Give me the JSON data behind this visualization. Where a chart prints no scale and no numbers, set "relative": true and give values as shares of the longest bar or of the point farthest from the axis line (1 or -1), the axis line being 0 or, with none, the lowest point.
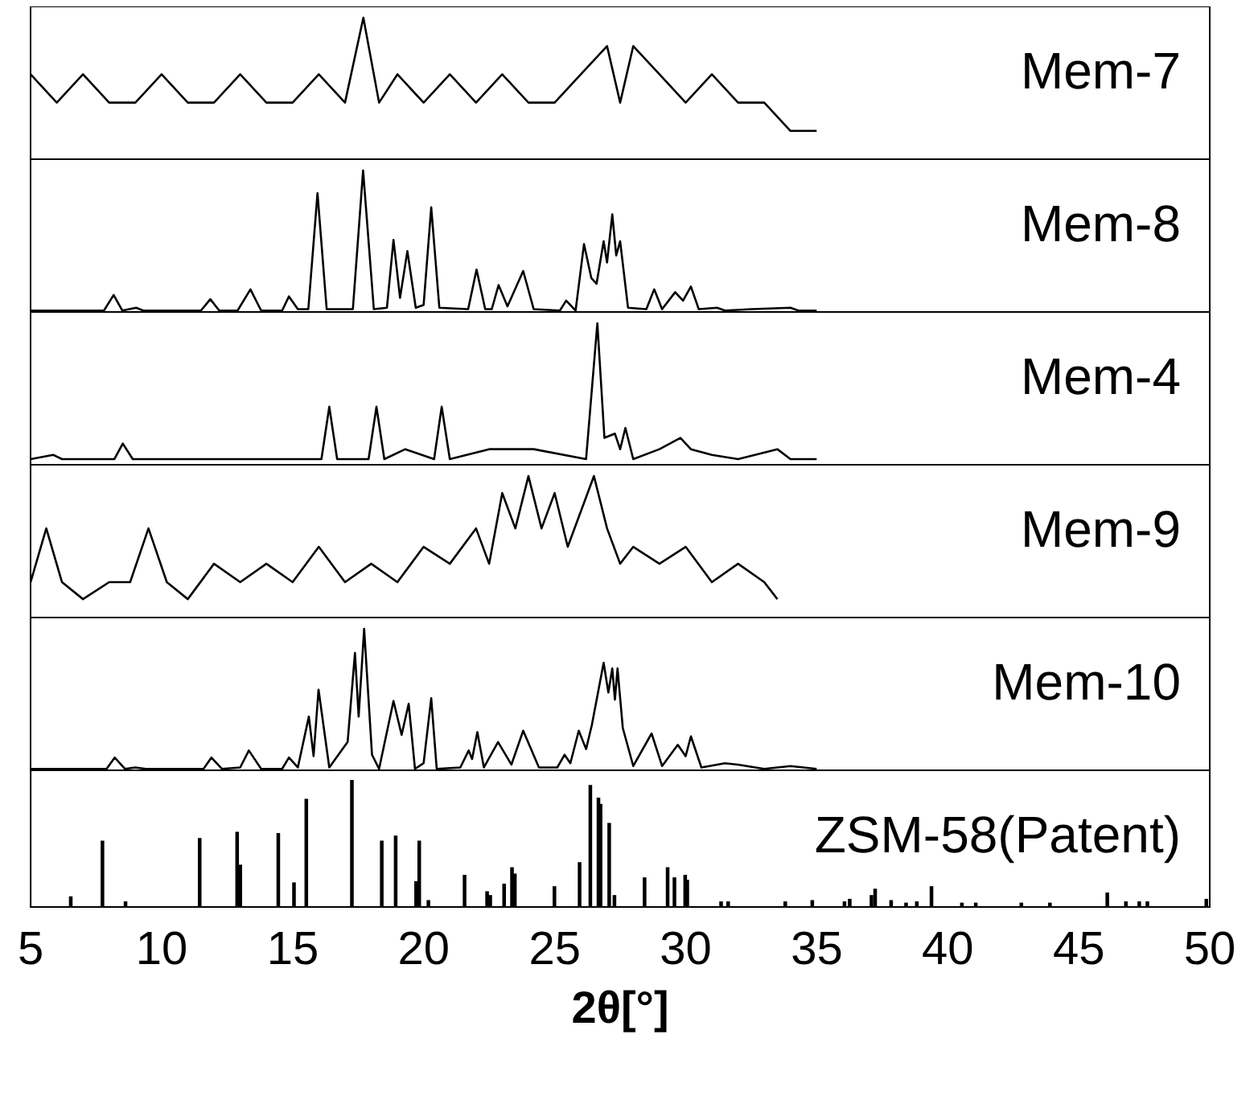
{
  "chart_data": [
    {
      "type": "line",
      "relative": true,
      "xlim": [
        5,
        50
      ],
      "tick_labels": false,
      "marker": "none",
      "series": [
        {
          "name": "Mem-7",
          "color": "#000000",
          "x": [
            5,
            6,
            7,
            8,
            9,
            10,
            11,
            12,
            13,
            14,
            15,
            16,
            17,
            17.7,
            18.3,
            19,
            20,
            21,
            22,
            23,
            24,
            25,
            26,
            27,
            27.5,
            28,
            29,
            30,
            31,
            32,
            33,
            34,
            35
          ],
          "values": [
            0.6,
            0.4,
            0.6,
            0.4,
            0.4,
            0.6,
            0.4,
            0.4,
            0.6,
            0.4,
            0.4,
            0.6,
            0.4,
            1,
            0.4,
            0.6,
            0.4,
            0.6,
            0.4,
            0.6,
            0.4,
            0.4,
            0.6,
            0.8,
            0.4,
            0.8,
            0.6,
            0.4,
            0.6,
            0.4,
            0.4,
            0.2,
            0.2
          ]
        }
      ]
    },
    {
      "type": "line",
      "relative": true,
      "xlim": [
        5,
        50
      ],
      "tick_labels": false,
      "marker": "none",
      "series": [
        {
          "name": "Mem-8",
          "color": "#000000",
          "x": [
            5.0,
            7.8,
            8.17,
            8.5,
            9.03,
            9.3,
            11.5,
            11.86,
            12.2,
            12.9,
            13.39,
            13.8,
            14.6,
            14.86,
            15.2,
            15.6,
            15.95,
            16.3,
            17.3,
            17.69,
            18.1,
            18.6,
            18.85,
            19.1,
            19.38,
            19.7,
            20.0,
            20.29,
            20.6,
            21.7,
            22.02,
            22.35,
            22.6,
            22.86,
            23.2,
            23.8,
            24.2,
            25.2,
            25.44,
            25.8,
            26.12,
            26.4,
            26.6,
            26.87,
            27.0,
            27.2,
            27.35,
            27.5,
            27.8,
            28.5,
            28.8,
            29.1,
            29.6,
            29.9,
            30.2,
            30.5,
            31.2,
            31.5,
            32.5,
            34.0,
            34.3,
            35.0
          ],
          "values": [
            0.01,
            0.01,
            0.12,
            0.01,
            0.03,
            0.01,
            0.01,
            0.09,
            0.01,
            0.01,
            0.16,
            0.01,
            0.01,
            0.11,
            0.02,
            0.02,
            0.84,
            0.02,
            0.02,
            1.0,
            0.02,
            0.03,
            0.51,
            0.1,
            0.43,
            0.03,
            0.05,
            0.74,
            0.03,
            0.02,
            0.3,
            0.02,
            0.02,
            0.19,
            0.04,
            0.29,
            0.02,
            0.01,
            0.08,
            0.01,
            0.48,
            0.24,
            0.2,
            0.5,
            0.35,
            0.69,
            0.4,
            0.5,
            0.03,
            0.02,
            0.16,
            0.02,
            0.14,
            0.08,
            0.18,
            0.02,
            0.03,
            0.01,
            0.02,
            0.03,
            0.01,
            0.01
          ]
        }
      ]
    },
    {
      "type": "line",
      "relative": true,
      "xlim": [
        5,
        50
      ],
      "tick_labels": false,
      "marker": "none",
      "series": [
        {
          "name": "Mem-4",
          "color": "#000000",
          "x": [
            5,
            5.86,
            6.2,
            8.2,
            8.52,
            8.9,
            16.1,
            16.4,
            16.7,
            17.9,
            18.2,
            18.5,
            19.3,
            20.4,
            20.69,
            21.0,
            22.5,
            24.2,
            26.2,
            26.63,
            26.9,
            27.3,
            27.5,
            27.7,
            28.0,
            29.0,
            29.8,
            30.2,
            31.0,
            32.0,
            33.5,
            34.0,
            35.0
          ],
          "values": [
            0.04,
            0.07,
            0.04,
            0.04,
            0.15,
            0.04,
            0.04,
            0.41,
            0.04,
            0.04,
            0.41,
            0.04,
            0.11,
            0.04,
            0.41,
            0.04,
            0.11,
            0.11,
            0.04,
            1,
            0.19,
            0.22,
            0.11,
            0.26,
            0.04,
            0.11,
            0.19,
            0.11,
            0.07,
            0.04,
            0.11,
            0.04,
            0.04
          ]
        }
      ]
    },
    {
      "type": "line",
      "relative": true,
      "xlim": [
        5,
        50
      ],
      "tick_labels": false,
      "marker": "none",
      "series": [
        {
          "name": "Mem-9",
          "color": "#000000",
          "x": [
            5,
            5.6,
            6.2,
            7,
            8,
            8.8,
            9.5,
            10.2,
            11,
            12,
            13,
            14,
            15,
            16,
            17,
            18,
            19,
            20,
            21,
            22,
            22.5,
            23,
            23.5,
            24,
            24.5,
            25,
            25.5,
            26,
            26.5,
            27,
            27.5,
            28,
            29,
            30,
            31,
            32,
            33,
            33.5
          ],
          "values": [
            0.25,
            0.63,
            0.25,
            0.13,
            0.25,
            0.25,
            0.63,
            0.25,
            0.13,
            0.38,
            0.25,
            0.38,
            0.25,
            0.5,
            0.25,
            0.38,
            0.25,
            0.5,
            0.38,
            0.63,
            0.38,
            0.88,
            0.63,
            1,
            0.63,
            0.88,
            0.5,
            0.75,
            1,
            0.63,
            0.38,
            0.5,
            0.38,
            0.5,
            0.25,
            0.38,
            0.25,
            0.13
          ]
        }
      ]
    },
    {
      "type": "line",
      "relative": true,
      "xlim": [
        5,
        50
      ],
      "tick_labels": false,
      "marker": "none",
      "series": [
        {
          "name": "Mem-10",
          "color": "#000000",
          "x": [
            5,
            7.9,
            8.21,
            8.6,
            9.0,
            9.4,
            11.6,
            11.9,
            12.3,
            13.0,
            13.33,
            13.8,
            14.6,
            14.86,
            15.2,
            15.62,
            15.8,
            15.99,
            16.4,
            17.1,
            17.38,
            17.52,
            17.73,
            18.03,
            18.3,
            18.85,
            19.16,
            19.43,
            19.67,
            20.0,
            20.29,
            20.5,
            21.4,
            21.72,
            21.85,
            22.05,
            22.3,
            22.84,
            23.35,
            23.8,
            24.4,
            25.1,
            25.38,
            25.6,
            25.92,
            26.2,
            26.42,
            26.87,
            27.05,
            27.2,
            27.3,
            27.4,
            27.6,
            28.0,
            28.7,
            29.1,
            29.7,
            30.0,
            30.2,
            30.6,
            31.5,
            32.0,
            33.0,
            34.0,
            35.0
          ],
          "values": [
            0.01,
            0.01,
            0.09,
            0.01,
            0.02,
            0.01,
            0.01,
            0.09,
            0.01,
            0.02,
            0.14,
            0.01,
            0.01,
            0.09,
            0.02,
            0.38,
            0.1,
            0.57,
            0.02,
            0.2,
            0.83,
            0.38,
            1,
            0.11,
            0.01,
            0.49,
            0.25,
            0.47,
            0.01,
            0.05,
            0.51,
            0.01,
            0.02,
            0.14,
            0.08,
            0.27,
            0.02,
            0.2,
            0.04,
            0.28,
            0.02,
            0.02,
            0.11,
            0.05,
            0.28,
            0.15,
            0.32,
            0.76,
            0.55,
            0.72,
            0.5,
            0.72,
            0.3,
            0.03,
            0.26,
            0.03,
            0.18,
            0.1,
            0.24,
            0.02,
            0.05,
            0.04,
            0.01,
            0.03,
            0.01
          ]
        }
      ]
    },
    {
      "type": "bar",
      "relative": true,
      "xlim": [
        5,
        50
      ],
      "xticks": [
        5,
        10,
        15,
        20,
        25,
        30,
        35,
        40,
        45,
        50
      ],
      "xlabel": "2θ[°]",
      "tick_labels": "x",
      "series": [
        {
          "name": "ZSM-58(Patent)",
          "color": "#000000",
          "x": [
            6.53,
            7.74,
            8.62,
            11.45,
            12.88,
            13.0,
            14.45,
            15.05,
            15.52,
            17.26,
            18.4,
            18.93,
            19.71,
            19.83,
            20.18,
            21.56,
            22.42,
            22.54,
            23.07,
            23.37,
            23.48,
            24.99,
            25.95,
            26.36,
            26.67,
            26.75,
            27.08,
            27.28,
            28.43,
            29.31,
            29.57,
            29.98,
            30.06,
            31.35,
            31.62,
            33.8,
            34.83,
            36.06,
            36.26,
            37.09,
            37.23,
            37.84,
            38.41,
            38.82,
            39.38,
            40.54,
            41.07,
            42.81,
            43.9,
            46.09,
            46.8,
            47.31,
            47.62,
            49.87
          ],
          "values": [
            0.08,
            0.52,
            0.04,
            0.54,
            0.59,
            0.33,
            0.58,
            0.19,
            0.85,
            1,
            0.52,
            0.56,
            0.2,
            0.52,
            0.05,
            0.25,
            0.12,
            0.09,
            0.18,
            0.31,
            0.26,
            0.16,
            0.35,
            0.96,
            0.86,
            0.81,
            0.66,
            0.09,
            0.23,
            0.31,
            0.23,
            0.25,
            0.21,
            0.04,
            0.04,
            0.04,
            0.05,
            0.04,
            0.06,
            0.09,
            0.14,
            0.05,
            0.03,
            0.04,
            0.16,
            0.03,
            0.03,
            0.03,
            0.03,
            0.11,
            0.04,
            0.04,
            0.04,
            0.06
          ]
        }
      ]
    }
  ]
}
